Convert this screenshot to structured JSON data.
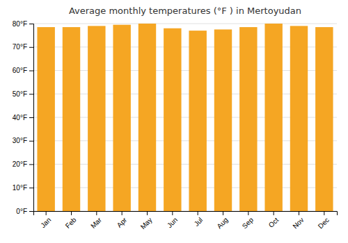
{
  "chart_data": {
    "type": "bar",
    "title": "Average monthly temperatures (°F ) in Mertoyudan",
    "categories": [
      "Jan",
      "Feb",
      "Mar",
      "Apr",
      "May",
      "Jun",
      "Jul",
      "Aug",
      "Sep",
      "Oct",
      "Nov",
      "Dec"
    ],
    "values": [
      78.5,
      78.5,
      79.0,
      79.5,
      80.0,
      78.0,
      77.0,
      77.5,
      78.5,
      80.0,
      79.0,
      78.5
    ],
    "color": "#F5A623",
    "ylim": [
      0,
      80
    ],
    "yticks": [
      {
        "value": 0,
        "label": "0°F"
      },
      {
        "value": 10,
        "label": "10°F"
      },
      {
        "value": 20,
        "label": "20°F"
      },
      {
        "value": 30,
        "label": "30°F"
      },
      {
        "value": 40,
        "label": "40°F"
      },
      {
        "value": 50,
        "label": "50°F"
      },
      {
        "value": 60,
        "label": "60°F"
      },
      {
        "value": 70,
        "label": "70°F"
      },
      {
        "value": 80,
        "label": "80°F"
      }
    ],
    "grid": true
  }
}
